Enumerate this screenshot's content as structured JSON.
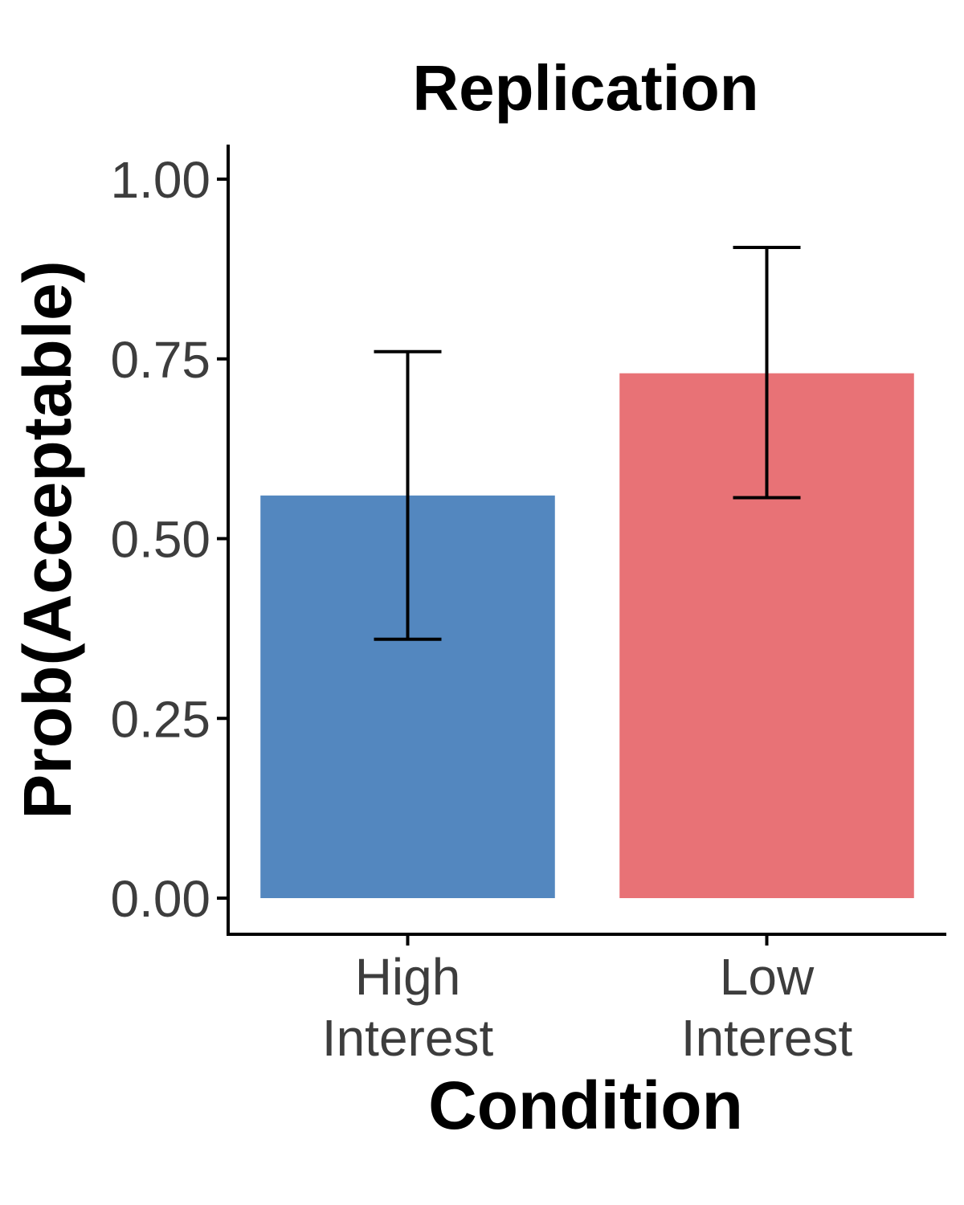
{
  "chart_data": {
    "type": "bar",
    "title": "Replication",
    "xlabel": "Condition",
    "ylabel": "Prob(Acceptable)",
    "categories": [
      [
        "High",
        "Interest"
      ],
      [
        "Low",
        "Interest"
      ]
    ],
    "values": [
      0.56,
      0.73
    ],
    "error_bars": [
      {
        "lower": 0.36,
        "upper": 0.76
      },
      {
        "lower": 0.557,
        "upper": 0.905
      }
    ],
    "bar_colors": [
      "#5387bf",
      "#e87276"
    ],
    "ylim": [
      -0.05,
      1.05
    ],
    "yticks": [
      "0.00",
      "0.25",
      "0.50",
      "0.75",
      "1.00"
    ],
    "ytick_values": [
      0,
      0.25,
      0.5,
      0.75,
      1.0
    ],
    "grid": false,
    "legend": "none"
  }
}
